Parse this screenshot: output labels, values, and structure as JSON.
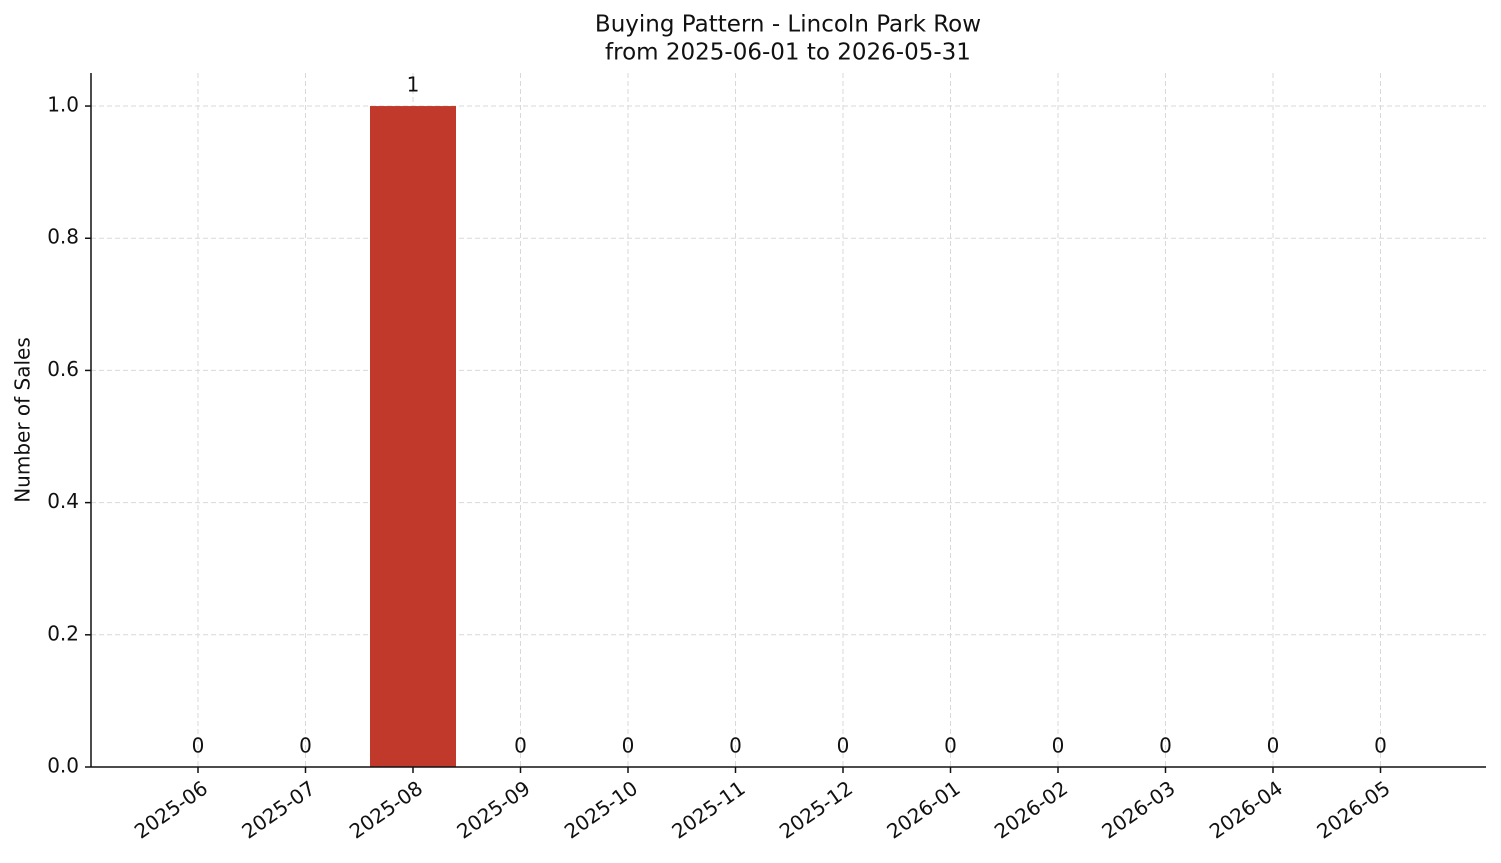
{
  "chart_data": {
    "type": "bar",
    "title": "Buying Pattern - Lincoln Park Row",
    "subtitle": "from 2025-06-01 to 2026-05-31",
    "y_label": "Number of Sales",
    "categories": [
      "2025-06",
      "2025-07",
      "2025-08",
      "2025-09",
      "2025-10",
      "2025-11",
      "2025-12",
      "2026-01",
      "2026-02",
      "2026-03",
      "2026-04",
      "2026-05"
    ],
    "values": [
      0,
      0,
      1,
      0,
      0,
      0,
      0,
      0,
      0,
      0,
      0,
      0
    ],
    "color": "#c0392b",
    "ylim": [
      0,
      1.05
    ],
    "yticks": [
      {
        "value": 0,
        "label": "0.0"
      },
      {
        "value": 0.2,
        "label": "0.2"
      },
      {
        "value": 0.4,
        "label": "0.4"
      },
      {
        "value": 0.6,
        "label": "0.6"
      },
      {
        "value": 0.8,
        "label": "0.8"
      },
      {
        "value": 1,
        "label": "1.0"
      }
    ],
    "grid": true
  }
}
